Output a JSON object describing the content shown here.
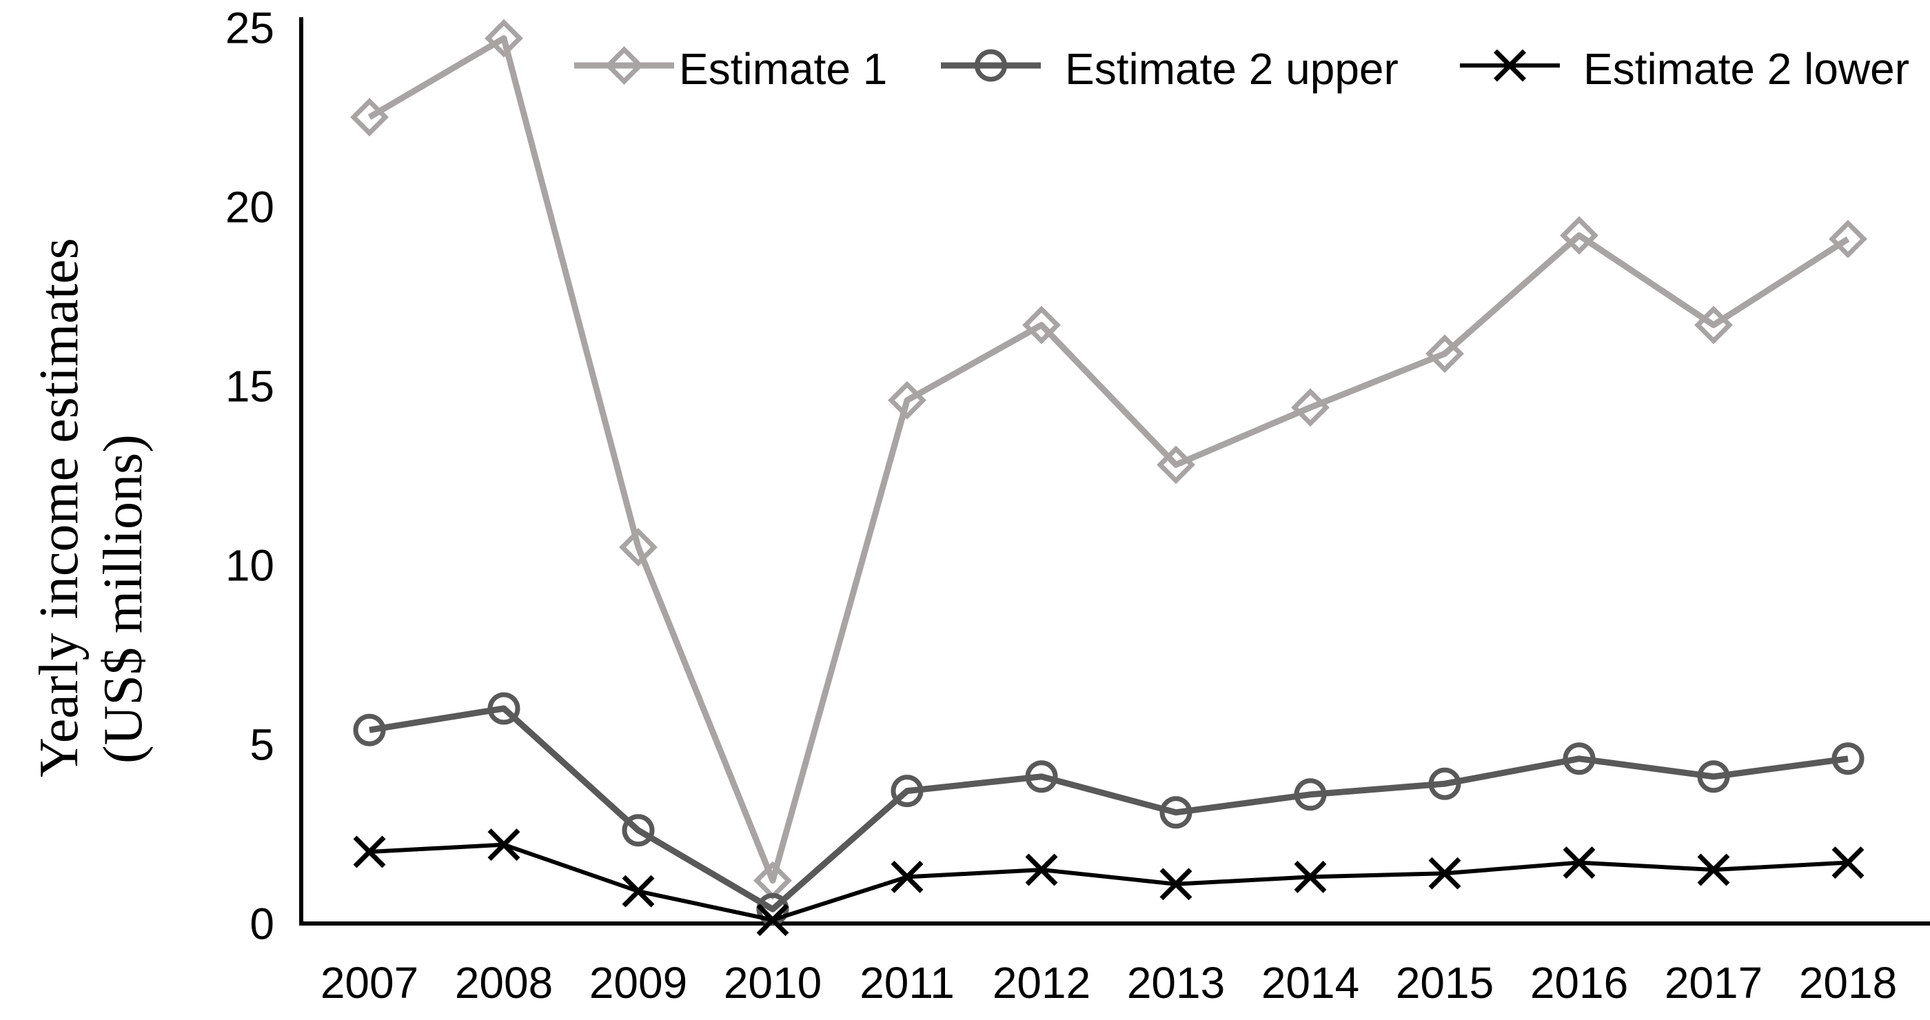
{
  "figure": {
    "background_color": "#ffffff",
    "text_color": "#000000"
  },
  "chart_data": {
    "type": "line",
    "title": "",
    "xlabel": "",
    "ylabel": "Yearly income estimates (US$ millions)",
    "ylabel_line1": "Yearly income estimates",
    "ylabel_line2": "(US$ millions)",
    "categories": [
      "2007",
      "2008",
      "2009",
      "2010",
      "2011",
      "2012",
      "2013",
      "2014",
      "2015",
      "2016",
      "2017",
      "2018"
    ],
    "y_ticks": [
      0,
      5,
      10,
      15,
      20,
      25
    ],
    "ylim": [
      0,
      25
    ],
    "grid": false,
    "legend_position": "top",
    "axis_color": "#000000",
    "series": [
      {
        "name": "Estimate 1",
        "marker": "diamond",
        "color": "#a8a4a4",
        "line_width": 9,
        "values": [
          22.5,
          24.7,
          10.5,
          1.2,
          14.6,
          16.7,
          12.8,
          14.4,
          15.9,
          19.2,
          16.7,
          19.1
        ]
      },
      {
        "name": "Estimate 2 upper",
        "marker": "circle",
        "color": "#595959",
        "line_width": 9,
        "values": [
          5.4,
          6.0,
          2.6,
          0.4,
          3.7,
          4.1,
          3.1,
          3.6,
          3.9,
          4.6,
          4.1,
          4.6
        ]
      },
      {
        "name": "Estimate 2 lower",
        "marker": "x",
        "color": "#000000",
        "line_width": 6,
        "values": [
          2.0,
          2.2,
          0.9,
          0.1,
          1.3,
          1.5,
          1.1,
          1.3,
          1.4,
          1.7,
          1.5,
          1.7
        ]
      }
    ]
  }
}
